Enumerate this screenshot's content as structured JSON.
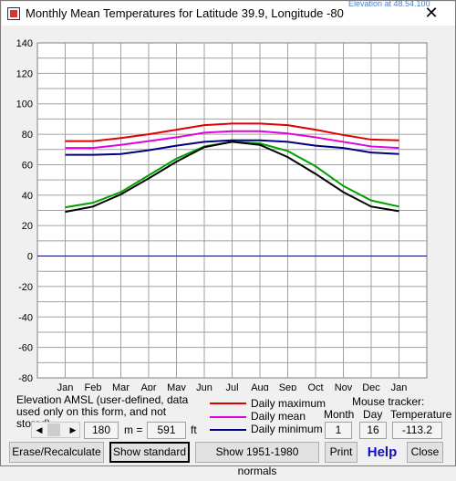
{
  "window": {
    "title": "Monthly Mean Temperatures for Latitude 39.9, Longitude -80",
    "behind_text": "Elevation at 48.54.100",
    "close_glyph": "✕"
  },
  "chart_data": {
    "type": "line",
    "title": "",
    "xlabel": "",
    "ylabel": "",
    "categories": [
      "Jan",
      "Feb",
      "Mar",
      "Apr",
      "May",
      "Jun",
      "Jul",
      "Aug",
      "Sep",
      "Oct",
      "Nov",
      "Dec",
      "Jan"
    ],
    "ylim": [
      -80,
      140
    ],
    "yticks": [
      140,
      120,
      100,
      80,
      60,
      40,
      20,
      0,
      -20,
      -40,
      -60,
      -80
    ],
    "grid": true,
    "series": [
      {
        "name": "Daily maximum",
        "color": "#e00000",
        "values": [
          75.5,
          75.5,
          77.5,
          80,
          83,
          86,
          87,
          87,
          86,
          83,
          79.5,
          76.5,
          76
        ]
      },
      {
        "name": "Daily mean",
        "color": "#e000e0",
        "values": [
          71,
          71,
          73,
          75.5,
          78,
          81,
          82,
          82,
          80.5,
          78,
          75,
          72,
          71
        ]
      },
      {
        "name": "Daily minimum",
        "color": "#000080",
        "values": [
          66.5,
          66.5,
          67,
          69.5,
          72.5,
          75,
          76,
          76,
          75,
          72.5,
          71,
          68,
          67
        ]
      },
      {
        "name": "Green curve",
        "color": "#00a000",
        "values": [
          32,
          35,
          42,
          53,
          64,
          72,
          75,
          74,
          69,
          59,
          46,
          36.5,
          32.5
        ]
      },
      {
        "name": "Black curve",
        "color": "#000000",
        "values": [
          29,
          32.5,
          40.5,
          51,
          62,
          71.5,
          75,
          73,
          65,
          54,
          42,
          32.5,
          29.5
        ]
      }
    ]
  },
  "controls": {
    "elevation_label": "Elevation AMSL (user-defined, data used only on this form, and  not stored)",
    "elevation_meters": "180",
    "m_equals": "m =",
    "elevation_feet": "591",
    "ft_label": "ft",
    "legend": [
      {
        "label": "Daily maximum",
        "color": "#e00000"
      },
      {
        "label": "Daily mean",
        "color": "#e000e0"
      },
      {
        "label": "Daily minimum",
        "color": "#000080"
      }
    ],
    "mouse_tracker_label": "Mouse tracker:",
    "month_header": "Month",
    "day_header": "Day",
    "temperature_header": "Temperature",
    "month_value": "1",
    "day_value": "16",
    "temperature_value": "-113.2"
  },
  "buttons": {
    "erase": "Erase/Recalculate",
    "show_standard": "Show standard",
    "show_normals": "Show 1951-1980 normals",
    "print": "Print",
    "help": "Help",
    "close": "Close"
  }
}
